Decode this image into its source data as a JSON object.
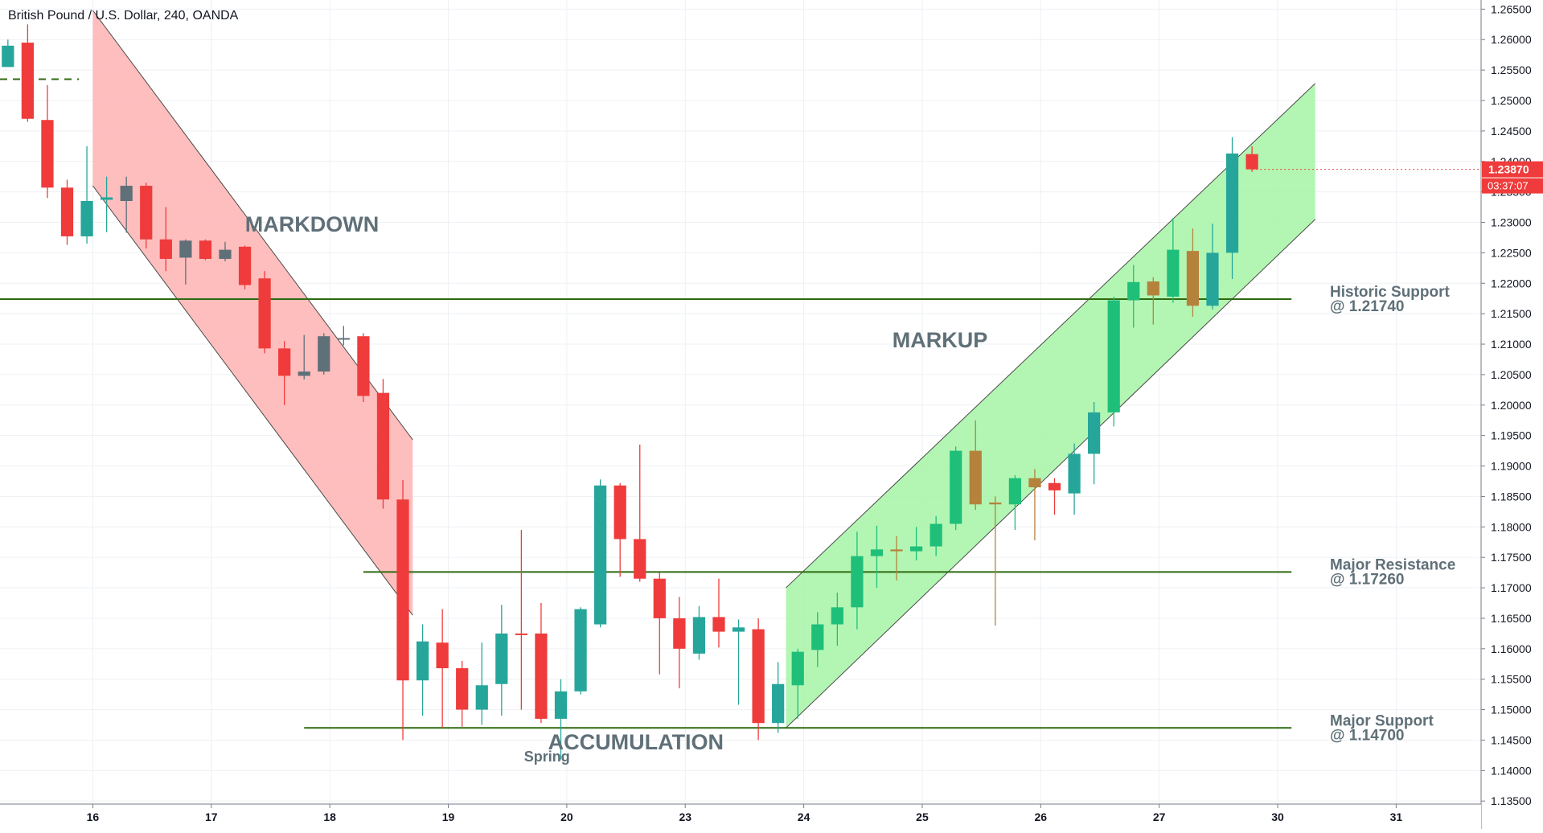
{
  "header": {
    "title": "British Pound / U.S. Dollar, 240, OANDA"
  },
  "colors": {
    "up": "#26a69a",
    "up_bright": "#1fbf7a",
    "down": "#ef3b3b",
    "neutral": "#5f7078",
    "amber": "#b5823c",
    "grid": "#eef0f4",
    "level_line": "#2e6b10",
    "markdown_fill": "#ffb3b3",
    "markup_fill": "#a6f5a6",
    "label": "#5f7078",
    "price_tag_bg": "#ef3b3b",
    "price_tag_text": "#ffffff"
  },
  "chart_data": {
    "type": "candlestick",
    "title": "British Pound / U.S. Dollar, 240, OANDA",
    "ylim": [
      1.1345,
      1.2665
    ],
    "y_ticks": [
      "1.26500",
      "1.26000",
      "1.25500",
      "1.25000",
      "1.24500",
      "1.24000",
      "1.23500",
      "1.23000",
      "1.22500",
      "1.22000",
      "1.21500",
      "1.21000",
      "1.20500",
      "1.20000",
      "1.19500",
      "1.19000",
      "1.18500",
      "1.18000",
      "1.17500",
      "1.17000",
      "1.16500",
      "1.16000",
      "1.15500",
      "1.15000",
      "1.14500",
      "1.14000",
      "1.13500"
    ],
    "x_labels": [
      {
        "label": "16",
        "x": 2.3
      },
      {
        "label": "17",
        "x": 8.3
      },
      {
        "label": "18",
        "x": 14.3
      },
      {
        "label": "19",
        "x": 20.3
      },
      {
        "label": "20",
        "x": 26.3
      },
      {
        "label": "23",
        "x": 32.3
      },
      {
        "label": "24",
        "x": 38.3
      },
      {
        "label": "25",
        "x": 44.3
      },
      {
        "label": "26",
        "x": 50.3
      },
      {
        "label": "27",
        "x": 56.3
      },
      {
        "label": "30",
        "x": 62.3
      },
      {
        "label": "31",
        "x": 68.3
      }
    ],
    "x_range": [
      -2.4,
      72.6
    ],
    "candles": [
      {
        "x": -2,
        "o": 1.259,
        "h": 1.26,
        "l": 1.256,
        "c": 1.2555,
        "col": "up"
      },
      {
        "x": -1,
        "o": 1.2595,
        "h": 1.2625,
        "l": 1.2465,
        "c": 1.247,
        "col": "down"
      },
      {
        "x": 0,
        "o": 1.2468,
        "h": 1.2525,
        "l": 1.234,
        "c": 1.2357,
        "col": "down"
      },
      {
        "x": 1,
        "o": 1.2357,
        "h": 1.237,
        "l": 1.2263,
        "c": 1.2277,
        "col": "down"
      },
      {
        "x": 2,
        "o": 1.2277,
        "h": 1.2425,
        "l": 1.2265,
        "c": 1.2335,
        "col": "up"
      },
      {
        "x": 3,
        "o": 1.2337,
        "h": 1.2375,
        "l": 1.2284,
        "c": 1.2341,
        "col": "up"
      },
      {
        "x": 4,
        "o": 1.2335,
        "h": 1.2375,
        "l": 1.2283,
        "c": 1.236,
        "col": "neutral"
      },
      {
        "x": 5,
        "o": 1.236,
        "h": 1.2365,
        "l": 1.2257,
        "c": 1.2272,
        "col": "down"
      },
      {
        "x": 6,
        "o": 1.2272,
        "h": 1.2325,
        "l": 1.222,
        "c": 1.224,
        "col": "down"
      },
      {
        "x": 7,
        "o": 1.2242,
        "h": 1.2272,
        "l": 1.2198,
        "c": 1.227,
        "col": "neutral"
      },
      {
        "x": 8,
        "o": 1.227,
        "h": 1.2272,
        "l": 1.2238,
        "c": 1.224,
        "col": "down"
      },
      {
        "x": 9,
        "o": 1.2255,
        "h": 1.2268,
        "l": 1.2236,
        "c": 1.224,
        "col": "neutral"
      },
      {
        "x": 10,
        "o": 1.226,
        "h": 1.2262,
        "l": 1.219,
        "c": 1.2197,
        "col": "down"
      },
      {
        "x": 11,
        "o": 1.2208,
        "h": 1.222,
        "l": 1.2085,
        "c": 1.2093,
        "col": "down"
      },
      {
        "x": 12,
        "o": 1.2093,
        "h": 1.2105,
        "l": 1.2,
        "c": 1.2048,
        "col": "down"
      },
      {
        "x": 13,
        "o": 1.2048,
        "h": 1.2115,
        "l": 1.2042,
        "c": 1.2055,
        "col": "neutral"
      },
      {
        "x": 14,
        "o": 1.2055,
        "h": 1.2118,
        "l": 1.205,
        "c": 1.2113,
        "col": "neutral"
      },
      {
        "x": 15,
        "o": 1.211,
        "h": 1.213,
        "l": 1.2098,
        "c": 1.211,
        "col": "neutral"
      },
      {
        "x": 16,
        "o": 1.2113,
        "h": 1.2118,
        "l": 1.2005,
        "c": 1.2015,
        "col": "down"
      },
      {
        "x": 17,
        "o": 1.202,
        "h": 1.2043,
        "l": 1.183,
        "c": 1.1845,
        "col": "down"
      },
      {
        "x": 18,
        "o": 1.1845,
        "h": 1.1877,
        "l": 1.145,
        "c": 1.1548,
        "col": "down"
      },
      {
        "x": 19,
        "o": 1.1548,
        "h": 1.164,
        "l": 1.149,
        "c": 1.1612,
        "col": "up"
      },
      {
        "x": 20,
        "o": 1.161,
        "h": 1.1665,
        "l": 1.147,
        "c": 1.1568,
        "col": "down"
      },
      {
        "x": 21,
        "o": 1.1568,
        "h": 1.158,
        "l": 1.1472,
        "c": 1.15,
        "col": "down"
      },
      {
        "x": 22,
        "o": 1.15,
        "h": 1.161,
        "l": 1.1475,
        "c": 1.154,
        "col": "up"
      },
      {
        "x": 23,
        "o": 1.1542,
        "h": 1.1672,
        "l": 1.149,
        "c": 1.1625,
        "col": "up"
      },
      {
        "x": 24,
        "o": 1.1625,
        "h": 1.1795,
        "l": 1.15,
        "c": 1.1623,
        "col": "down"
      },
      {
        "x": 25,
        "o": 1.1625,
        "h": 1.1675,
        "l": 1.1478,
        "c": 1.1485,
        "col": "down"
      },
      {
        "x": 26,
        "o": 1.1485,
        "h": 1.155,
        "l": 1.1418,
        "c": 1.153,
        "col": "up"
      },
      {
        "x": 27,
        "o": 1.153,
        "h": 1.1668,
        "l": 1.1525,
        "c": 1.1665,
        "col": "up"
      },
      {
        "x": 28,
        "o": 1.164,
        "h": 1.1878,
        "l": 1.1635,
        "c": 1.1868,
        "col": "up"
      },
      {
        "x": 29,
        "o": 1.1868,
        "h": 1.1872,
        "l": 1.1718,
        "c": 1.178,
        "col": "down"
      },
      {
        "x": 30,
        "o": 1.178,
        "h": 1.1935,
        "l": 1.171,
        "c": 1.1715,
        "col": "down"
      },
      {
        "x": 31,
        "o": 1.1715,
        "h": 1.1725,
        "l": 1.1558,
        "c": 1.165,
        "col": "down"
      },
      {
        "x": 32,
        "o": 1.165,
        "h": 1.1685,
        "l": 1.1535,
        "c": 1.16,
        "col": "down"
      },
      {
        "x": 33,
        "o": 1.1592,
        "h": 1.167,
        "l": 1.1582,
        "c": 1.1652,
        "col": "up"
      },
      {
        "x": 34,
        "o": 1.1652,
        "h": 1.1715,
        "l": 1.1602,
        "c": 1.1628,
        "col": "down"
      },
      {
        "x": 35,
        "o": 1.1628,
        "h": 1.1648,
        "l": 1.1508,
        "c": 1.1635,
        "col": "up"
      },
      {
        "x": 36,
        "o": 1.1632,
        "h": 1.165,
        "l": 1.145,
        "c": 1.1478,
        "col": "down"
      },
      {
        "x": 37,
        "o": 1.1478,
        "h": 1.1578,
        "l": 1.1462,
        "c": 1.1542,
        "col": "up"
      },
      {
        "x": 38,
        "o": 1.154,
        "h": 1.16,
        "l": 1.1485,
        "c": 1.1595,
        "col": "up_bright"
      },
      {
        "x": 39,
        "o": 1.1598,
        "h": 1.166,
        "l": 1.157,
        "c": 1.164,
        "col": "up_bright"
      },
      {
        "x": 40,
        "o": 1.164,
        "h": 1.1692,
        "l": 1.1605,
        "c": 1.1668,
        "col": "up_bright"
      },
      {
        "x": 41,
        "o": 1.1668,
        "h": 1.1792,
        "l": 1.1632,
        "c": 1.1752,
        "col": "up_bright"
      },
      {
        "x": 42,
        "o": 1.1752,
        "h": 1.1802,
        "l": 1.17,
        "c": 1.1763,
        "col": "up_bright"
      },
      {
        "x": 43,
        "o": 1.1763,
        "h": 1.1785,
        "l": 1.1712,
        "c": 1.176,
        "col": "amber"
      },
      {
        "x": 44,
        "o": 1.176,
        "h": 1.18,
        "l": 1.1745,
        "c": 1.1768,
        "col": "up_bright"
      },
      {
        "x": 45,
        "o": 1.1768,
        "h": 1.1818,
        "l": 1.1752,
        "c": 1.1805,
        "col": "up_bright"
      },
      {
        "x": 46,
        "o": 1.1805,
        "h": 1.1932,
        "l": 1.1795,
        "c": 1.1925,
        "col": "up_bright"
      },
      {
        "x": 47,
        "o": 1.1925,
        "h": 1.1975,
        "l": 1.1828,
        "c": 1.1837,
        "col": "amber"
      },
      {
        "x": 48,
        "o": 1.1837,
        "h": 1.185,
        "l": 1.1638,
        "c": 1.184,
        "col": "amber"
      },
      {
        "x": 49,
        "o": 1.1837,
        "h": 1.1885,
        "l": 1.1795,
        "c": 1.188,
        "col": "up_bright"
      },
      {
        "x": 50,
        "o": 1.188,
        "h": 1.1895,
        "l": 1.1778,
        "c": 1.1865,
        "col": "amber"
      },
      {
        "x": 51,
        "o": 1.1872,
        "h": 1.188,
        "l": 1.182,
        "c": 1.186,
        "col": "down"
      },
      {
        "x": 52,
        "o": 1.1855,
        "h": 1.1937,
        "l": 1.182,
        "c": 1.192,
        "col": "up"
      },
      {
        "x": 53,
        "o": 1.192,
        "h": 1.2005,
        "l": 1.187,
        "c": 1.1988,
        "col": "up"
      },
      {
        "x": 54,
        "o": 1.1988,
        "h": 1.2178,
        "l": 1.1965,
        "c": 1.2172,
        "col": "up_bright"
      },
      {
        "x": 55,
        "o": 1.2172,
        "h": 1.223,
        "l": 1.2127,
        "c": 1.2202,
        "col": "up_bright"
      },
      {
        "x": 56,
        "o": 1.218,
        "h": 1.221,
        "l": 1.2132,
        "c": 1.2203,
        "col": "amber"
      },
      {
        "x": 57,
        "o": 1.2178,
        "h": 1.2307,
        "l": 1.2168,
        "c": 1.2255,
        "col": "up_bright"
      },
      {
        "x": 58,
        "o": 1.2253,
        "h": 1.229,
        "l": 1.2145,
        "c": 1.2163,
        "col": "amber"
      },
      {
        "x": 59,
        "o": 1.2163,
        "h": 1.2298,
        "l": 1.2157,
        "c": 1.225,
        "col": "up"
      },
      {
        "x": 60,
        "o": 1.225,
        "h": 1.244,
        "l": 1.2207,
        "c": 1.2413,
        "col": "up"
      },
      {
        "x": 61,
        "o": 1.2412,
        "h": 1.2425,
        "l": 1.2383,
        "c": 1.2387,
        "col": "down"
      }
    ],
    "levels": [
      {
        "name": "historic-support",
        "price": 1.2174,
        "label": "Historic Support",
        "sub": "@ 1.21740",
        "from": -2.4,
        "to": 63
      },
      {
        "name": "major-resistance",
        "price": 1.1726,
        "label": "Major Resistance",
        "sub": "@ 1.17260",
        "from": 16,
        "to": 63
      },
      {
        "name": "major-support",
        "price": 1.147,
        "label": "Major Support",
        "sub": "@ 1.14700",
        "from": 13,
        "to": 63
      }
    ],
    "dashed_level": {
      "price": 1.2535,
      "from": -2.4,
      "to": 1.6
    },
    "channels": [
      {
        "name": "markdown-channel",
        "fill": "markdown_fill",
        "upper": [
          [
            2.3,
            1.2648
          ],
          [
            18.5,
            1.1943
          ]
        ],
        "lower": [
          [
            2.3,
            1.236
          ],
          [
            18.5,
            1.1655
          ]
        ]
      },
      {
        "name": "markup-channel",
        "fill": "markup_fill",
        "upper": [
          [
            37.4,
            1.17
          ],
          [
            64.2,
            1.2528
          ]
        ],
        "lower": [
          [
            37.4,
            1.147
          ],
          [
            64.2,
            1.2305
          ]
        ]
      }
    ],
    "annotations": [
      {
        "name": "markdown-label",
        "text": "MARKDOWN",
        "x": 13.4,
        "y": 1.2285
      },
      {
        "name": "markup-label",
        "text": "MARKUP",
        "x": 45.2,
        "y": 1.2095
      },
      {
        "name": "accumulation-label",
        "text": "ACCUMULATION",
        "x": 29.8,
        "y": 1.1435
      },
      {
        "name": "spring-label",
        "text": "Spring",
        "x": 25.3,
        "y": 1.1415
      }
    ],
    "last_price": {
      "value": "1.23870",
      "countdown": "03:37:07",
      "price": 1.2387
    }
  }
}
